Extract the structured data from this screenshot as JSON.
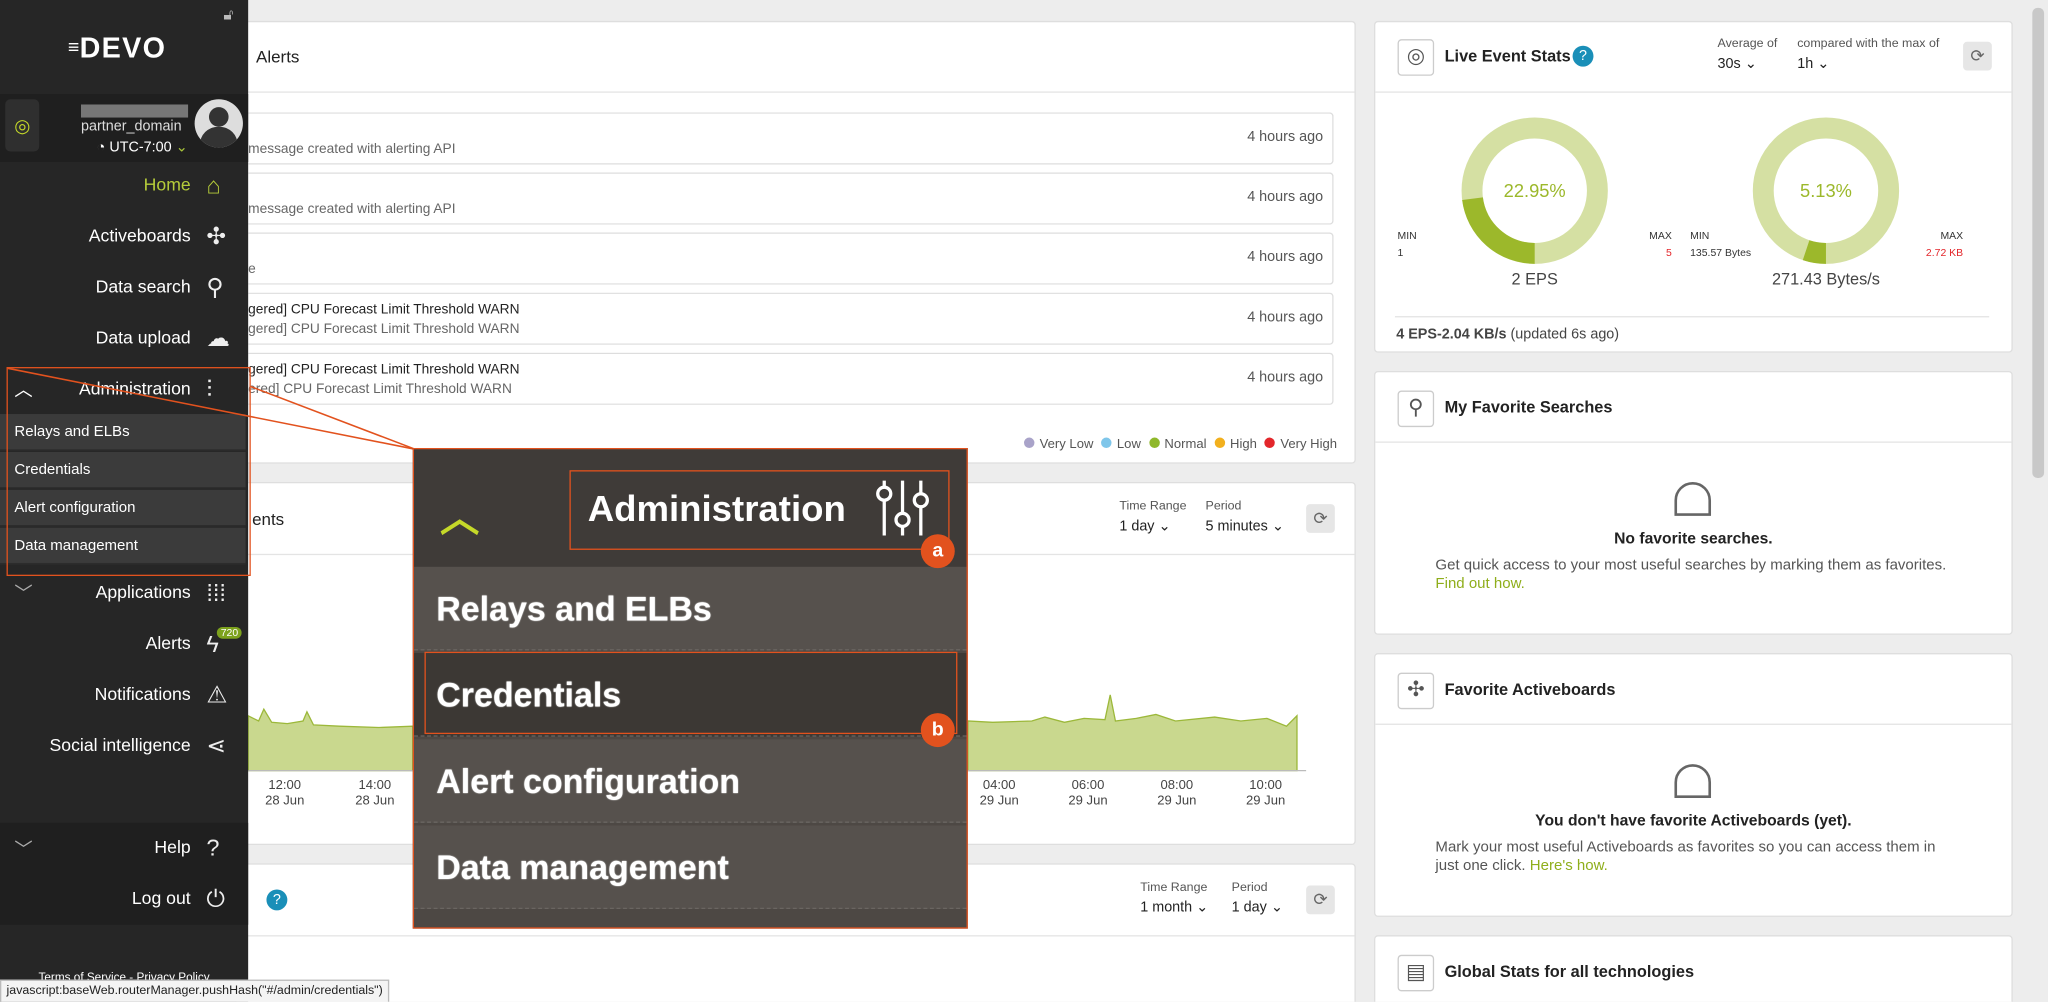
{
  "sidebar": {
    "logo": "DEVO",
    "user": "partner_domain",
    "timezone": "UTC-7:00",
    "nav": [
      "Home",
      "Activeboards",
      "Data search",
      "Data upload",
      "Administration"
    ],
    "admin_sub": [
      "Relays and ELBs",
      "Credentials",
      "Alert configuration",
      "Data management"
    ],
    "nav2": [
      "Applications",
      "Alerts",
      "Notifications",
      "Social intelligence"
    ],
    "alerts_badge": "720",
    "nav3": [
      "Help",
      "Log out"
    ],
    "footer": "Terms of Service - Privacy Policy"
  },
  "status_bar": "javascript:baseWeb.routerManager.pushHash(\"#/admin/credentials\")",
  "alerts_panel": {
    "title": "Alerts",
    "items": [
      {
        "line1": "",
        "line2": "message created with alerting API",
        "time": "4 hours ago"
      },
      {
        "line1": "",
        "line2": "message created with alerting API",
        "time": "4 hours ago"
      },
      {
        "line1": "",
        "line2": "e",
        "time": "4 hours ago"
      },
      {
        "line1": "gered] CPU Forecast Limit Threshold WARN",
        "line2": "gered] CPU Forecast Limit Threshold WARN",
        "time": "4 hours ago"
      },
      {
        "line1": "gered] CPU Forecast Limit Threshold WARN",
        "line2": "ered] CPU Forecast Limit Threshold WARN",
        "time": "4 hours ago"
      }
    ],
    "legend": [
      {
        "name": "Very Low",
        "color": "#a9a3c9"
      },
      {
        "name": "Low",
        "color": "#7fc6ea"
      },
      {
        "name": "Normal",
        "color": "#8fb82b"
      },
      {
        "name": "High",
        "color": "#f2b01e"
      },
      {
        "name": "Very High",
        "color": "#e3262b"
      }
    ]
  },
  "events_panel": {
    "title": "ents",
    "time_range_label": "Time Range",
    "time_range": "1 day",
    "period_label": "Period",
    "period": "5 minutes",
    "x_labels": [
      {
        "time": "12:00",
        "date": "28 Jun"
      },
      {
        "time": "14:00",
        "date": "28 Jun"
      },
      {
        "time": "04:00",
        "date": "29 Jun"
      },
      {
        "time": "06:00",
        "date": "29 Jun"
      },
      {
        "time": "08:00",
        "date": "29 Jun"
      },
      {
        "time": "10:00",
        "date": "29 Jun"
      }
    ]
  },
  "third_panel": {
    "time_range_label": "Time Range",
    "time_range": "1 month",
    "period_label": "Period",
    "period": "1 day"
  },
  "live_stats": {
    "title": "Live Event Stats",
    "average_label": "Average of",
    "average": "30s",
    "compare_label": "compared with the max of",
    "compare": "1h",
    "donuts": [
      {
        "percent": "22.95%",
        "min_label": "MIN",
        "min": "1",
        "max_label": "MAX",
        "max": "5",
        "value": "2 EPS"
      },
      {
        "percent": "5.13%",
        "min_label": "MIN",
        "min": "135.57 Bytes",
        "max_label": "MAX",
        "max": "2.72 KB",
        "value": "271.43 Bytes/s"
      }
    ],
    "summary_strong": "4 EPS-2.04 KB/s",
    "summary": "(updated 6s ago)"
  },
  "favorite_searches": {
    "title": "My Favorite Searches",
    "empty": "No favorite searches.",
    "text": "Get quick access to your most useful searches by marking them as favorites.",
    "link": "Find out how."
  },
  "favorite_activeboards": {
    "title": "Favorite Activeboards",
    "empty": "You don't have favorite Activeboards (yet).",
    "text": "Mark your most useful Activeboards as favorites so you can access them in just one click.",
    "link": "Here's how."
  },
  "global_stats": {
    "title": "Global Stats for all technologies"
  },
  "zoom": {
    "title": "Administration",
    "items": [
      "Relays and ELBs",
      "Credentials",
      "Alert configuration",
      "Data management"
    ],
    "badges": [
      "a",
      "b"
    ]
  }
}
